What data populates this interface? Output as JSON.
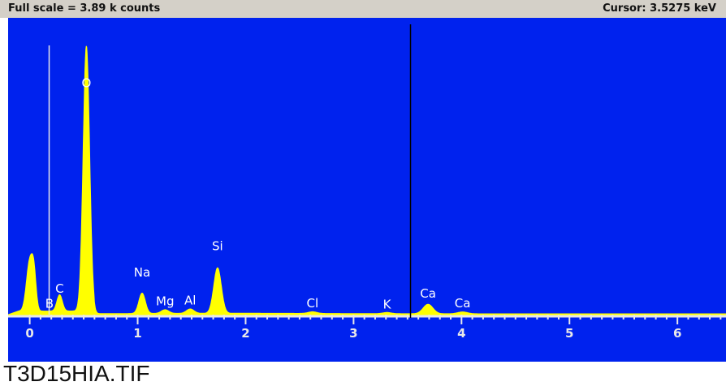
{
  "header": {
    "full_scale": "Full scale = 3.89 k counts",
    "cursor": "Cursor: 3.5275 keV"
  },
  "filename": "T3D15HIA.TIF",
  "colors": {
    "background": "#0022ee",
    "spectrum": "#ffff00",
    "axis": "#e8e8e8",
    "label": "#ffffff",
    "cursor": "#000000",
    "marker": "#e8e8e8"
  },
  "chart_data": {
    "type": "area",
    "xlabel": "",
    "ylabel": "",
    "xlim": [
      -0.2,
      6.45
    ],
    "ylim": [
      0,
      3890
    ],
    "x_ticks": [
      0,
      1,
      2,
      3,
      4,
      5,
      6
    ],
    "cursor_kev": 3.5275,
    "marker_kev": 0.18,
    "peaks": [
      {
        "kev": 0.0,
        "counts": 730,
        "width": 0.03
      },
      {
        "kev": 0.04,
        "counts": 430,
        "width": 0.02
      },
      {
        "kev": 0.277,
        "counts": 240,
        "width": 0.025
      },
      {
        "kev": 0.525,
        "counts": 3900,
        "width": 0.03
      },
      {
        "kev": 1.041,
        "counts": 300,
        "width": 0.03
      },
      {
        "kev": 1.254,
        "counts": 55,
        "width": 0.035
      },
      {
        "kev": 1.487,
        "counts": 65,
        "width": 0.035
      },
      {
        "kev": 1.74,
        "counts": 670,
        "width": 0.035
      },
      {
        "kev": 2.62,
        "counts": 25,
        "width": 0.04
      },
      {
        "kev": 3.31,
        "counts": 18,
        "width": 0.04
      },
      {
        "kev": 3.69,
        "counts": 140,
        "width": 0.045
      },
      {
        "kev": 4.01,
        "counts": 28,
        "width": 0.045
      }
    ],
    "labels": [
      {
        "text": "O",
        "kev": 0.525,
        "counts": 3350
      },
      {
        "text": "C",
        "kev": 0.277,
        "counts": 320
      },
      {
        "text": "B",
        "kev": 0.183,
        "counts": 100
      },
      {
        "text": "Na",
        "kev": 1.041,
        "counts": 560
      },
      {
        "text": "Mg",
        "kev": 1.254,
        "counts": 140
      },
      {
        "text": "Al",
        "kev": 1.487,
        "counts": 150
      },
      {
        "text": "Si",
        "kev": 1.74,
        "counts": 950
      },
      {
        "text": "Cl",
        "kev": 2.62,
        "counts": 110
      },
      {
        "text": "K",
        "kev": 3.31,
        "counts": 90
      },
      {
        "text": "Ca",
        "kev": 3.69,
        "counts": 250
      },
      {
        "text": "Ca",
        "kev": 4.01,
        "counts": 110
      }
    ]
  }
}
